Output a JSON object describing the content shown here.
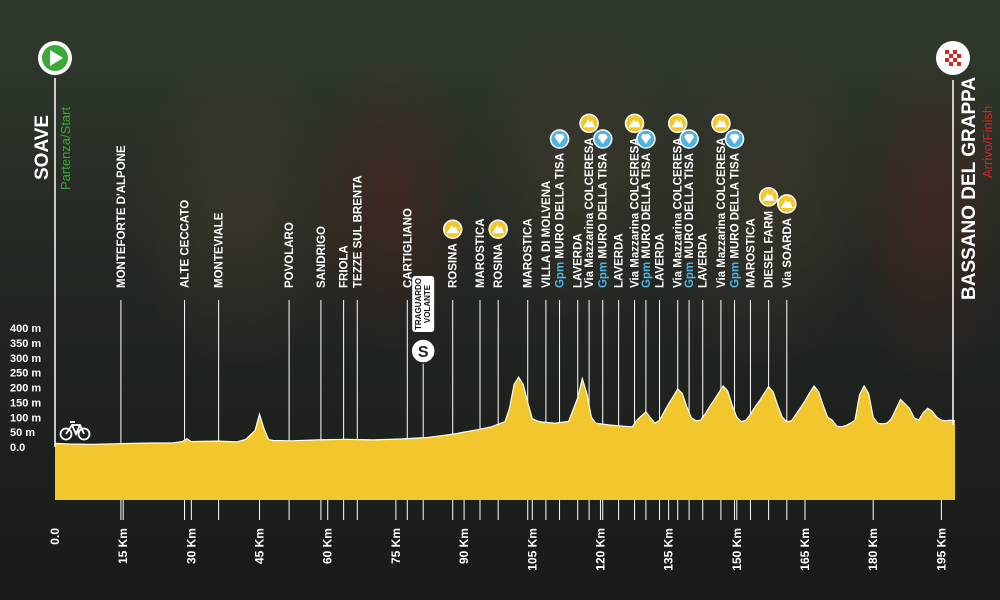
{
  "start": {
    "name": "SOAVE",
    "sub": "Partenza/Start"
  },
  "finish": {
    "name": "BASSANO DEL GRAPPA",
    "sub": "Arrivo/Finish"
  },
  "sprint_label": [
    "TRAGUARDO",
    "VOLANTE"
  ],
  "colors": {
    "profile": "#f2c72e",
    "start_icon": "#3aa935",
    "sub_start": "#3aa935",
    "sub_finish": "#d9231e",
    "gpm_text": "#4fb3e3",
    "kom_icon": "#f2c72e"
  },
  "chart_data": {
    "type": "area",
    "title": "",
    "xlabel": "",
    "ylabel": "",
    "xlim": [
      0,
      198
    ],
    "ylim": [
      0,
      400
    ],
    "y_ticks": [
      {
        "v": 0,
        "label": "0.0"
      },
      {
        "v": 50,
        "label": "50 m"
      },
      {
        "v": 100,
        "label": "100 m"
      },
      {
        "v": 150,
        "label": "150 m"
      },
      {
        "v": 200,
        "label": "200 m"
      },
      {
        "v": 250,
        "label": "250 m"
      },
      {
        "v": 300,
        "label": "300 m"
      },
      {
        "v": 350,
        "label": "350 m"
      },
      {
        "v": 400,
        "label": "400 m"
      }
    ],
    "x_ticks": [
      {
        "v": 0,
        "label": "0.0"
      },
      {
        "v": 15,
        "label": "15 Km"
      },
      {
        "v": 30,
        "label": "30 Km"
      },
      {
        "v": 45,
        "label": "45 Km"
      },
      {
        "v": 60,
        "label": "60 Km"
      },
      {
        "v": 75,
        "label": "75 Km"
      },
      {
        "v": 90,
        "label": "90 Km"
      },
      {
        "v": 105,
        "label": "105 Km"
      },
      {
        "v": 120,
        "label": "120 Km"
      },
      {
        "v": 135,
        "label": "135 Km"
      },
      {
        "v": 150,
        "label": "150 Km"
      },
      {
        "v": 165,
        "label": "165 Km"
      },
      {
        "v": 180,
        "label": "180 Km"
      },
      {
        "v": 195,
        "label": "195 Km"
      }
    ],
    "profile": {
      "x": [
        0,
        3,
        8,
        14,
        20,
        26,
        28,
        29,
        30,
        32,
        36,
        40,
        42,
        44,
        45,
        46,
        47,
        48,
        52,
        58,
        64,
        70,
        76,
        82,
        85,
        88,
        90,
        93,
        96,
        99,
        100,
        101,
        102,
        103,
        104,
        105,
        106,
        107,
        108,
        110,
        113,
        115,
        116,
        117,
        118,
        119,
        120,
        122,
        125,
        127,
        128,
        130,
        131,
        132,
        133,
        134,
        135,
        136,
        137,
        138,
        139,
        140,
        141,
        142,
        143,
        144,
        145,
        146,
        147,
        148,
        149,
        150,
        151,
        152,
        153,
        154,
        155,
        156,
        157,
        158,
        159,
        160,
        161,
        162,
        163,
        164,
        165,
        166,
        167,
        168,
        169,
        170,
        171,
        172,
        173,
        174,
        175,
        176,
        177,
        178,
        179,
        180,
        181,
        182,
        183,
        184,
        186,
        188,
        189,
        190,
        191,
        192,
        193,
        194,
        195,
        196,
        197,
        198
      ],
      "y": [
        12,
        10,
        9,
        11,
        13,
        14,
        18,
        28,
        18,
        19,
        20,
        17,
        26,
        55,
        110,
        60,
        25,
        22,
        21,
        24,
        26,
        24,
        27,
        32,
        38,
        44,
        50,
        58,
        68,
        85,
        130,
        210,
        235,
        210,
        150,
        95,
        88,
        84,
        83,
        80,
        86,
        165,
        230,
        180,
        100,
        80,
        78,
        74,
        70,
        68,
        90,
        118,
        98,
        80,
        90,
        118,
        145,
        170,
        195,
        180,
        135,
        98,
        88,
        90,
        110,
        135,
        158,
        182,
        205,
        188,
        140,
        100,
        85,
        90,
        110,
        135,
        155,
        180,
        203,
        185,
        140,
        100,
        85,
        88,
        110,
        132,
        155,
        182,
        205,
        186,
        140,
        100,
        90,
        70,
        68,
        72,
        80,
        90,
        175,
        205,
        180,
        100,
        80,
        78,
        80,
        95,
        160,
        130,
        98,
        90,
        115,
        130,
        120,
        100,
        90,
        88,
        90,
        88
      ]
    },
    "waypoints": [
      {
        "km": 14.5,
        "label": "MONTEFORTE D'ALPONE"
      },
      {
        "km": 28.5,
        "label": "ALTE CECCATO"
      },
      {
        "km": 36.0,
        "label": "MONTEVIALE"
      },
      {
        "km": 51.5,
        "label": "POVOLARO"
      },
      {
        "km": 58.5,
        "label": "SANDRIGO"
      },
      {
        "km": 63.5,
        "label": "FRIOLA"
      },
      {
        "km": 66.5,
        "label": "TEZZE SUL BRENTA"
      },
      {
        "km": 77.5,
        "label": "CARTIGLIANO"
      },
      {
        "km": 87.5,
        "label": "ROSINA",
        "kom": true
      },
      {
        "km": 93.5,
        "label": "MAROSTICA"
      },
      {
        "km": 97.5,
        "label": "ROSINA",
        "kom": true
      },
      {
        "km": 104.0,
        "label": "MAROSTICA"
      },
      {
        "km": 108.0,
        "label": "VILLA DI MOLVENA"
      },
      {
        "km": 111.0,
        "label": "Gpm MURO DELLA TISA",
        "gpm": true,
        "kom_diamond": true
      },
      {
        "km": 115.0,
        "label": "LAVERDA"
      },
      {
        "km": 117.5,
        "label": "Via Mazzarina COLCERESA",
        "kom": true
      },
      {
        "km": 120.5,
        "label": "Gpm MURO DELLA TISA",
        "gpm": true,
        "kom_diamond": true
      },
      {
        "km": 124.0,
        "label": "LAVERDA"
      },
      {
        "km": 127.5,
        "label": "Via Mazzarina COLCERESA",
        "kom": true
      },
      {
        "km": 130.0,
        "label": "Gpm MURO DELLA TISA",
        "gpm": true,
        "kom_diamond": true
      },
      {
        "km": 133.0,
        "label": "LAVERDA"
      },
      {
        "km": 137.0,
        "label": "Via Mazzarina COLCERESA",
        "kom": true
      },
      {
        "km": 139.5,
        "label": "Gpm MURO DELLA TISA",
        "gpm": true,
        "kom_diamond": true
      },
      {
        "km": 142.5,
        "label": "LAVERDA"
      },
      {
        "km": 146.5,
        "label": "Via Mazzarina COLCERESA",
        "kom": true
      },
      {
        "km": 149.5,
        "label": "Gpm MURO DELLA TISA",
        "gpm": true,
        "kom_diamond": true
      },
      {
        "km": 153.0,
        "label": "MAROSTICA"
      },
      {
        "km": 157.0,
        "label": "DIESEL FARM",
        "kom": true
      },
      {
        "km": 161.0,
        "label": "Via SOARDA",
        "kom": true
      }
    ],
    "sprint_km": 81.0
  }
}
